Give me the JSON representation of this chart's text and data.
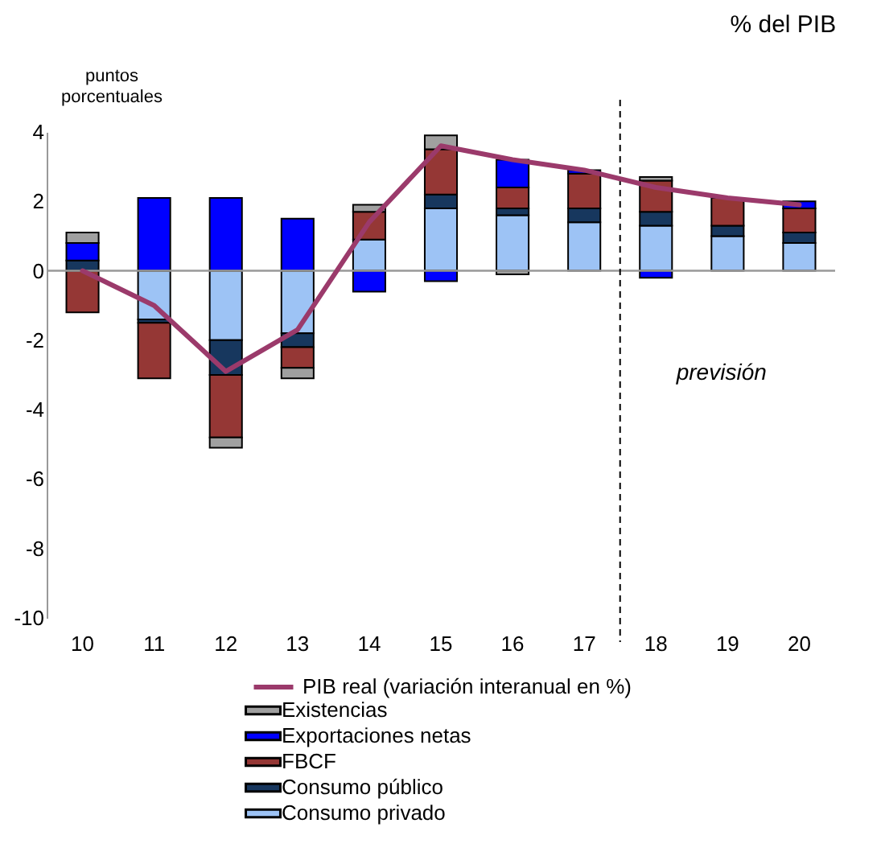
{
  "chart_data": {
    "type": "bar",
    "title": "% del PIB",
    "ylabel": "puntos porcentuales",
    "stacked": true,
    "legend": "bottom",
    "categories": [
      "10",
      "11",
      "12",
      "13",
      "14",
      "15",
      "16",
      "17",
      "18",
      "19",
      "20"
    ],
    "ylim": [
      -10,
      4
    ],
    "yticks": [
      -10,
      -8,
      -6,
      -4,
      -2,
      0,
      2,
      4
    ],
    "ref_lines": [
      {
        "axis": "x",
        "value": "18",
        "label": "previsión",
        "line_style": "dashed"
      }
    ],
    "series": [
      {
        "name": "Consumo privado",
        "color": "#9dc3f5",
        "values": [
          null,
          -1.4,
          -2.0,
          -1.8,
          0.9,
          1.8,
          1.6,
          1.4,
          1.3,
          1.0,
          0.8
        ]
      },
      {
        "name": "Consumo público",
        "color": "#17375e",
        "values": [
          0.3,
          -0.1,
          -1.0,
          -0.4,
          null,
          0.4,
          0.2,
          0.4,
          0.4,
          0.3,
          0.3
        ]
      },
      {
        "name": "FBCF",
        "color": "#953735",
        "values": [
          -1.2,
          -1.6,
          -1.8,
          -0.6,
          0.8,
          1.3,
          0.6,
          1.0,
          0.9,
          0.8,
          0.7
        ]
      },
      {
        "name": "Exportaciones netas",
        "color": "#0000ff",
        "values": [
          0.5,
          2.1,
          2.1,
          1.5,
          -0.6,
          -0.3,
          0.8,
          0.1,
          -0.2,
          null,
          0.2
        ]
      },
      {
        "name": "Existencias",
        "color": "#a0a0a0",
        "values": [
          0.3,
          null,
          -0.3,
          -0.3,
          0.2,
          0.4,
          -0.1,
          null,
          0.1,
          null,
          null
        ]
      },
      {
        "name": "PIB real (variación interanual en %)",
        "type": "line",
        "color": "#9b3a6b",
        "values": [
          0.0,
          -1.0,
          -2.9,
          -1.7,
          1.4,
          3.6,
          3.2,
          2.9,
          2.4,
          2.1,
          1.9
        ]
      }
    ]
  }
}
